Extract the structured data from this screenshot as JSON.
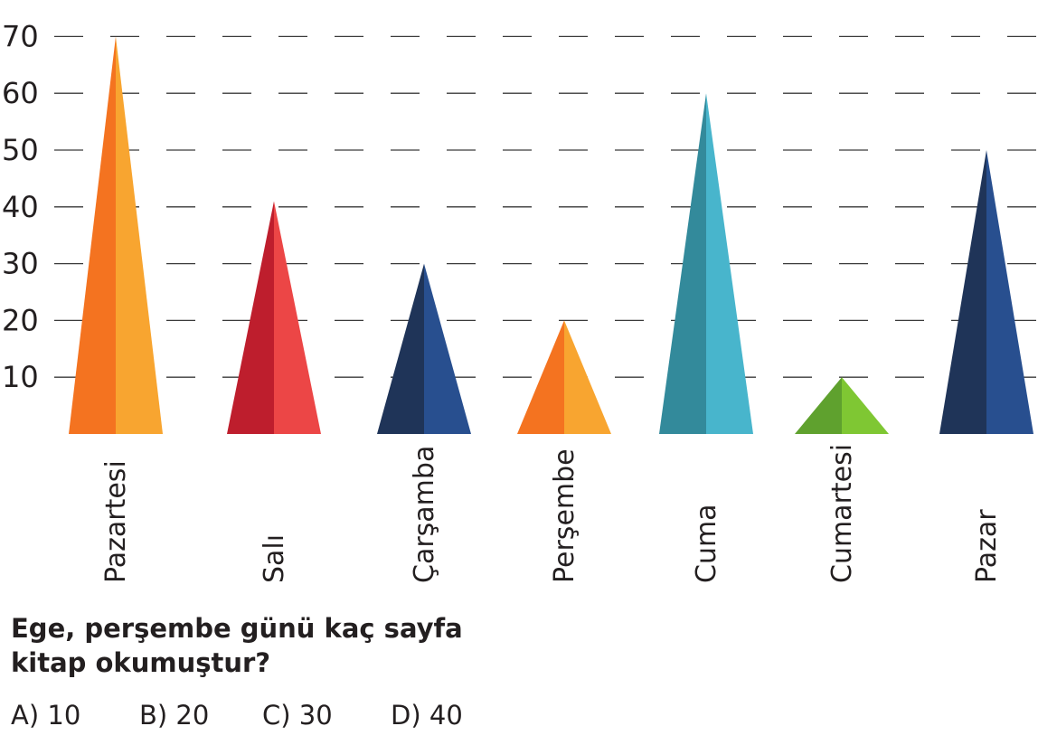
{
  "chart_data": {
    "type": "bar",
    "categories": [
      "Pazartesi",
      "Salı",
      "Çarşamba",
      "Perşembe",
      "Cuma",
      "Cumartesi",
      "Pazar"
    ],
    "values": [
      70,
      41,
      30,
      20,
      60,
      10,
      50
    ],
    "yticks": [
      10,
      20,
      30,
      40,
      50,
      60,
      70
    ],
    "ylim": [
      0,
      70
    ],
    "grid": true,
    "bar_shape": "triangle",
    "colors": [
      {
        "dark": "#f47320",
        "light": "#f8a530"
      },
      {
        "dark": "#be1e2d",
        "light": "#ec4646"
      },
      {
        "dark": "#1f3458",
        "light": "#284f8f"
      },
      {
        "dark": "#f47320",
        "light": "#f8a530"
      },
      {
        "dark": "#338a9b",
        "light": "#48b5cc"
      },
      {
        "dark": "#5fa12e",
        "light": "#7fc733"
      },
      {
        "dark": "#1f3458",
        "light": "#284f8f"
      }
    ]
  },
  "question": {
    "line1": "Ege, perşembe günü kaç sayfa",
    "line2": "kitap okumuştur?"
  },
  "options": [
    "A) 10",
    "B) 20",
    "C) 30",
    "D) 40"
  ]
}
